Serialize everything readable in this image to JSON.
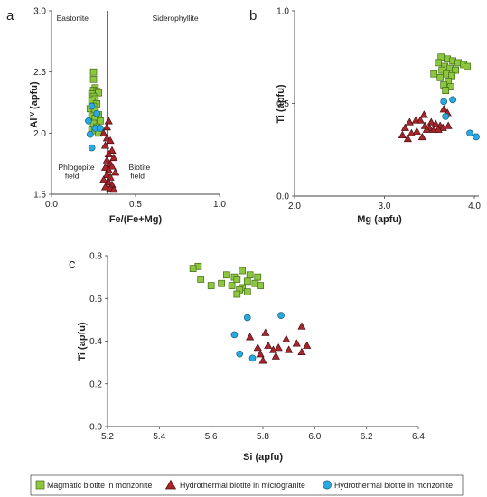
{
  "legend": [
    {
      "label": "Magmatic biotite in monzonite",
      "marker": "square",
      "color": "#8dc63f"
    },
    {
      "label": "Hydrothermal biotite in microgranite",
      "marker": "triangle",
      "color": "#a8262b"
    },
    {
      "label": "Hydrothermal biotite in monzonite",
      "marker": "circle",
      "color": "#29a9df"
    }
  ],
  "chart_data": [
    {
      "panel": "a",
      "type": "scatter",
      "xlabel": "Fe/(Fe+Mg)",
      "ylabel": "Al",
      "ylabel_sup": "IV",
      "ylabel_suffix": " (apfu)",
      "xlim": [
        0.0,
        1.0
      ],
      "ylim": [
        1.5,
        3.0
      ],
      "xticks": [
        0.0,
        0.5,
        1.0
      ],
      "xtick_labels": [
        "0.0",
        "0.5",
        "1.0"
      ],
      "yticks": [
        1.5,
        2.0,
        2.5,
        3.0
      ],
      "ytick_labels": [
        "1.5",
        "2.0",
        "2.5",
        "3.0"
      ],
      "divider_x": 0.33,
      "annotations": [
        {
          "text": "Eastonite",
          "x": 0.03,
          "y": 2.92
        },
        {
          "text": "Siderophyllite",
          "x": 0.6,
          "y": 2.92
        },
        {
          "text": "Phlogopite",
          "x": 0.04,
          "y": 1.7
        },
        {
          "text": "field",
          "x": 0.08,
          "y": 1.63
        },
        {
          "text": "Biotite",
          "x": 0.46,
          "y": 1.7
        },
        {
          "text": "field",
          "x": 0.47,
          "y": 1.63
        }
      ],
      "series": [
        {
          "marker": "square",
          "points": [
            [
              0.25,
              2.5
            ],
            [
              0.25,
              2.44
            ],
            [
              0.26,
              2.37
            ],
            [
              0.25,
              2.35
            ],
            [
              0.27,
              2.34
            ],
            [
              0.28,
              2.33
            ],
            [
              0.24,
              2.32
            ],
            [
              0.25,
              2.3
            ],
            [
              0.26,
              2.28
            ],
            [
              0.24,
              2.26
            ],
            [
              0.27,
              2.24
            ],
            [
              0.25,
              2.22
            ],
            [
              0.23,
              2.2
            ],
            [
              0.26,
              2.18
            ],
            [
              0.28,
              2.15
            ],
            [
              0.24,
              2.14
            ],
            [
              0.26,
              2.12
            ],
            [
              0.29,
              2.1
            ],
            [
              0.25,
              2.08
            ],
            [
              0.27,
              2.05
            ],
            [
              0.24,
              2.03
            ],
            [
              0.26,
              2.02
            ],
            [
              0.28,
              2.0
            ]
          ]
        },
        {
          "marker": "triangle",
          "points": [
            [
              0.34,
              2.1
            ],
            [
              0.33,
              2.05
            ],
            [
              0.31,
              2.0
            ],
            [
              0.33,
              1.96
            ],
            [
              0.35,
              1.94
            ],
            [
              0.32,
              1.9
            ],
            [
              0.36,
              1.86
            ],
            [
              0.34,
              1.83
            ],
            [
              0.37,
              1.8
            ],
            [
              0.33,
              1.78
            ],
            [
              0.35,
              1.75
            ],
            [
              0.36,
              1.73
            ],
            [
              0.32,
              1.72
            ],
            [
              0.34,
              1.7
            ],
            [
              0.38,
              1.68
            ],
            [
              0.33,
              1.66
            ],
            [
              0.35,
              1.64
            ],
            [
              0.31,
              1.62
            ],
            [
              0.34,
              1.6
            ],
            [
              0.36,
              1.58
            ],
            [
              0.32,
              1.56
            ],
            [
              0.35,
              1.55
            ],
            [
              0.37,
              1.54
            ]
          ]
        },
        {
          "marker": "circle",
          "points": [
            [
              0.24,
              2.22
            ],
            [
              0.27,
              2.16
            ],
            [
              0.22,
              2.1
            ],
            [
              0.26,
              2.04
            ],
            [
              0.29,
              2.04
            ],
            [
              0.23,
              1.99
            ],
            [
              0.24,
              1.88
            ]
          ]
        }
      ]
    },
    {
      "panel": "b",
      "type": "scatter",
      "xlabel": "Mg (apfu)",
      "ylabel": "Ti (apfu)",
      "xlim": [
        2.0,
        4.05
      ],
      "ylim": [
        0.0,
        1.0
      ],
      "xticks": [
        2.0,
        3.0,
        4.0
      ],
      "xtick_labels": [
        "2.0",
        "3.0",
        "4.0"
      ],
      "yticks": [
        0.0,
        0.5,
        1.0
      ],
      "ytick_labels": [
        "0.0",
        "0.5",
        "1.0"
      ],
      "series": [
        {
          "marker": "square",
          "points": [
            [
              3.63,
              0.75
            ],
            [
              3.7,
              0.74
            ],
            [
              3.76,
              0.73
            ],
            [
              3.6,
              0.72
            ],
            [
              3.82,
              0.72
            ],
            [
              3.88,
              0.71
            ],
            [
              3.67,
              0.7
            ],
            [
              3.73,
              0.69
            ],
            [
              3.92,
              0.7
            ],
            [
              3.64,
              0.68
            ],
            [
              3.79,
              0.68
            ],
            [
              3.55,
              0.66
            ],
            [
              3.69,
              0.66
            ],
            [
              3.75,
              0.65
            ],
            [
              3.62,
              0.64
            ],
            [
              3.71,
              0.62
            ],
            [
              3.66,
              0.6
            ],
            [
              3.74,
              0.59
            ],
            [
              3.68,
              0.57
            ]
          ]
        },
        {
          "marker": "triangle",
          "points": [
            [
              3.66,
              0.47
            ],
            [
              3.7,
              0.45
            ],
            [
              3.44,
              0.44
            ],
            [
              3.35,
              0.41
            ],
            [
              3.4,
              0.41
            ],
            [
              3.52,
              0.4
            ],
            [
              3.28,
              0.4
            ],
            [
              3.57,
              0.39
            ],
            [
              3.62,
              0.38
            ],
            [
              3.45,
              0.38
            ],
            [
              3.5,
              0.37
            ],
            [
              3.23,
              0.37
            ],
            [
              3.55,
              0.36
            ],
            [
              3.36,
              0.35
            ],
            [
              3.47,
              0.36
            ],
            [
              3.65,
              0.37
            ],
            [
              3.71,
              0.38
            ],
            [
              3.6,
              0.36
            ],
            [
              3.3,
              0.34
            ],
            [
              3.2,
              0.33
            ],
            [
              3.42,
              0.32
            ],
            [
              3.26,
              0.31
            ]
          ]
        },
        {
          "marker": "circle",
          "points": [
            [
              3.76,
              0.52
            ],
            [
              3.66,
              0.51
            ],
            [
              3.68,
              0.43
            ],
            [
              3.95,
              0.34
            ],
            [
              4.02,
              0.32
            ]
          ]
        }
      ]
    },
    {
      "panel": "c",
      "type": "scatter",
      "xlabel": "Si (apfu)",
      "ylabel": "Ti (apfu)",
      "xlim": [
        5.2,
        6.4
      ],
      "ylim": [
        0.0,
        0.8
      ],
      "xticks": [
        5.2,
        5.4,
        5.6,
        5.8,
        6.0,
        6.2,
        6.4
      ],
      "xtick_labels": [
        "5.2",
        "5.4",
        "5.6",
        "5.8",
        "6.0",
        "6.2",
        "6.4"
      ],
      "yticks": [
        0.0,
        0.2,
        0.4,
        0.6,
        0.8
      ],
      "ytick_labels": [
        "0.0",
        "0.2",
        "0.4",
        "0.6",
        "0.8"
      ],
      "series": [
        {
          "marker": "square",
          "points": [
            [
              5.55,
              0.75
            ],
            [
              5.53,
              0.74
            ],
            [
              5.72,
              0.73
            ],
            [
              5.66,
              0.71
            ],
            [
              5.69,
              0.7
            ],
            [
              5.75,
              0.71
            ],
            [
              5.56,
              0.69
            ],
            [
              5.7,
              0.69
            ],
            [
              5.78,
              0.7
            ],
            [
              5.74,
              0.68
            ],
            [
              5.64,
              0.67
            ],
            [
              5.68,
              0.66
            ],
            [
              5.77,
              0.67
            ],
            [
              5.6,
              0.66
            ],
            [
              5.72,
              0.65
            ],
            [
              5.79,
              0.66
            ],
            [
              5.71,
              0.64
            ],
            [
              5.74,
              0.63
            ],
            [
              5.7,
              0.62
            ]
          ]
        },
        {
          "marker": "triangle",
          "points": [
            [
              5.95,
              0.47
            ],
            [
              5.81,
              0.44
            ],
            [
              5.75,
              0.42
            ],
            [
              5.89,
              0.41
            ],
            [
              5.93,
              0.39
            ],
            [
              5.97,
              0.38
            ],
            [
              5.82,
              0.38
            ],
            [
              5.86,
              0.37
            ],
            [
              5.78,
              0.37
            ],
            [
              5.84,
              0.36
            ],
            [
              5.9,
              0.36
            ],
            [
              5.95,
              0.35
            ],
            [
              5.79,
              0.34
            ],
            [
              5.85,
              0.33
            ],
            [
              5.8,
              0.31
            ]
          ]
        },
        {
          "marker": "circle",
          "points": [
            [
              5.87,
              0.52
            ],
            [
              5.74,
              0.51
            ],
            [
              5.69,
              0.43
            ],
            [
              5.71,
              0.34
            ],
            [
              5.76,
              0.32
            ]
          ]
        }
      ]
    }
  ]
}
